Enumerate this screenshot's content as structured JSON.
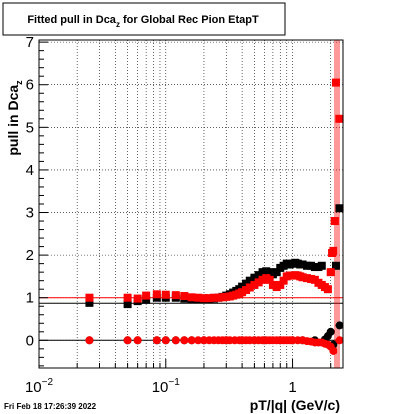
{
  "chart_data": {
    "type": "scatter",
    "title": "Fitted pull in Dca",
    "title_sub": "z",
    "title_rest": " for Global Rec Pion EtapT",
    "ylabel": "pull in Dca",
    "ylabel_sub": "z",
    "xlabel": "pT/|q| (GeV/c)",
    "timestamp": "Fri Feb 18 17:26:39 2022",
    "x_scale": "log",
    "xlim": [
      0.01,
      2.5
    ],
    "ylim": [
      -0.65,
      7.05
    ],
    "grid": true,
    "x_ticks": [
      {
        "value": 0.01,
        "base": "10",
        "exp": "−2"
      },
      {
        "value": 0.1,
        "base": "10",
        "exp": "−1"
      },
      {
        "value": 1,
        "base": "1",
        "exp": ""
      }
    ],
    "y_ticks": [
      "0",
      "1",
      "2",
      "3",
      "4",
      "5",
      "6",
      "7"
    ],
    "reference_lines": [
      {
        "name": "red-sigma-fit",
        "y": 1.0,
        "color": "#ff0000"
      },
      {
        "name": "black-sigma-fit",
        "y": 0.87,
        "color": "#000000"
      },
      {
        "name": "mean-fit",
        "y": 0.0,
        "color": "#000000"
      }
    ],
    "series": [
      {
        "color": "#000000",
        "marker": "square",
        "points": [
          [
            0.025,
            0.88
          ],
          [
            0.05,
            0.85
          ],
          [
            0.06,
            0.92
          ],
          [
            0.07,
            0.95
          ],
          [
            0.085,
            1.0
          ],
          [
            0.1,
            1.0
          ],
          [
            0.12,
            1.0
          ],
          [
            0.14,
            0.98
          ],
          [
            0.16,
            0.97
          ],
          [
            0.18,
            0.97
          ],
          [
            0.2,
            0.96
          ],
          [
            0.22,
            0.97
          ],
          [
            0.24,
            0.98
          ],
          [
            0.26,
            1.0
          ],
          [
            0.28,
            1.02
          ],
          [
            0.3,
            1.05
          ],
          [
            0.32,
            1.08
          ],
          [
            0.34,
            1.12
          ],
          [
            0.36,
            1.16
          ],
          [
            0.38,
            1.2
          ],
          [
            0.4,
            1.26
          ],
          [
            0.43,
            1.33
          ],
          [
            0.46,
            1.4
          ],
          [
            0.5,
            1.47
          ],
          [
            0.54,
            1.53
          ],
          [
            0.58,
            1.6
          ],
          [
            0.62,
            1.62
          ],
          [
            0.66,
            1.6
          ],
          [
            0.7,
            1.55
          ],
          [
            0.75,
            1.6
          ],
          [
            0.8,
            1.7
          ],
          [
            0.85,
            1.75
          ],
          [
            0.9,
            1.8
          ],
          [
            0.95,
            1.78
          ],
          [
            1.0,
            1.8
          ],
          [
            1.05,
            1.82
          ],
          [
            1.1,
            1.8
          ],
          [
            1.15,
            1.78
          ],
          [
            1.2,
            1.78
          ],
          [
            1.3,
            1.75
          ],
          [
            1.4,
            1.75
          ],
          [
            1.5,
            1.72
          ],
          [
            1.6,
            1.72
          ],
          [
            1.7,
            1.75
          ],
          [
            2.2,
            1.75
          ],
          [
            2.35,
            3.1
          ]
        ]
      },
      {
        "color": "#ff0000",
        "marker": "square",
        "points": [
          [
            0.025,
            1.0
          ],
          [
            0.05,
            1.0
          ],
          [
            0.06,
            0.98
          ],
          [
            0.07,
            1.05
          ],
          [
            0.085,
            1.08
          ],
          [
            0.1,
            1.07
          ],
          [
            0.12,
            1.06
          ],
          [
            0.14,
            1.04
          ],
          [
            0.16,
            1.01
          ],
          [
            0.18,
            1.0
          ],
          [
            0.2,
            0.99
          ],
          [
            0.22,
            0.99
          ],
          [
            0.24,
            1.0
          ],
          [
            0.26,
            1.0
          ],
          [
            0.28,
            1.01
          ],
          [
            0.3,
            1.02
          ],
          [
            0.32,
            1.03
          ],
          [
            0.34,
            1.05
          ],
          [
            0.36,
            1.07
          ],
          [
            0.38,
            1.1
          ],
          [
            0.4,
            1.13
          ],
          [
            0.43,
            1.18
          ],
          [
            0.46,
            1.24
          ],
          [
            0.5,
            1.3
          ],
          [
            0.54,
            1.36
          ],
          [
            0.58,
            1.42
          ],
          [
            0.62,
            1.46
          ],
          [
            0.66,
            1.42
          ],
          [
            0.7,
            1.3
          ],
          [
            0.75,
            1.25
          ],
          [
            0.8,
            1.3
          ],
          [
            0.85,
            1.4
          ],
          [
            0.9,
            1.5
          ],
          [
            0.95,
            1.52
          ],
          [
            1.0,
            1.52
          ],
          [
            1.05,
            1.53
          ],
          [
            1.1,
            1.52
          ],
          [
            1.15,
            1.5
          ],
          [
            1.2,
            1.48
          ],
          [
            1.3,
            1.46
          ],
          [
            1.4,
            1.44
          ],
          [
            1.5,
            1.42
          ],
          [
            1.6,
            1.35
          ],
          [
            1.7,
            1.3
          ],
          [
            1.8,
            1.25
          ],
          [
            1.9,
            1.2
          ],
          [
            2.0,
            1.6
          ],
          [
            2.05,
            2.05
          ],
          [
            2.1,
            2.1
          ],
          [
            2.15,
            2.8
          ],
          [
            2.2,
            6.05
          ],
          [
            2.35,
            5.2
          ]
        ]
      },
      {
        "color": "#000000",
        "marker": "circle",
        "points": [
          [
            0.025,
            0.0
          ],
          [
            0.05,
            0.0
          ],
          [
            0.06,
            0.0
          ],
          [
            0.085,
            0.0
          ],
          [
            0.1,
            0.0
          ],
          [
            0.12,
            0.0
          ],
          [
            0.14,
            0.0
          ],
          [
            0.16,
            0.0
          ],
          [
            0.2,
            0.0
          ],
          [
            0.3,
            0.0
          ],
          [
            0.4,
            0.0
          ],
          [
            0.5,
            0.0
          ],
          [
            0.6,
            0.0
          ],
          [
            0.8,
            0.0
          ],
          [
            1.0,
            0.0
          ],
          [
            1.2,
            0.0
          ],
          [
            1.5,
            0.0
          ],
          [
            1.8,
            0.02
          ],
          [
            1.9,
            0.1
          ],
          [
            2.0,
            0.2
          ],
          [
            2.1,
            -0.1
          ],
          [
            2.35,
            0.35
          ]
        ]
      },
      {
        "color": "#ff0000",
        "marker": "circle",
        "points": [
          [
            0.025,
            0.0
          ],
          [
            0.05,
            0.0
          ],
          [
            0.06,
            0.0
          ],
          [
            0.085,
            0.0
          ],
          [
            0.1,
            0.0
          ],
          [
            0.12,
            0.0
          ],
          [
            0.14,
            0.0
          ],
          [
            0.16,
            0.0
          ],
          [
            0.18,
            0.0
          ],
          [
            0.2,
            0.0
          ],
          [
            0.22,
            0.0
          ],
          [
            0.24,
            0.0
          ],
          [
            0.26,
            0.0
          ],
          [
            0.28,
            0.0
          ],
          [
            0.3,
            0.0
          ],
          [
            0.32,
            0.0
          ],
          [
            0.35,
            0.0
          ],
          [
            0.38,
            0.0
          ],
          [
            0.4,
            0.0
          ],
          [
            0.43,
            0.0
          ],
          [
            0.46,
            0.0
          ],
          [
            0.5,
            0.0
          ],
          [
            0.54,
            0.0
          ],
          [
            0.58,
            0.0
          ],
          [
            0.62,
            0.0
          ],
          [
            0.66,
            0.0
          ],
          [
            0.7,
            0.0
          ],
          [
            0.75,
            0.0
          ],
          [
            0.8,
            0.0
          ],
          [
            0.85,
            0.0
          ],
          [
            0.9,
            0.0
          ],
          [
            0.95,
            0.0
          ],
          [
            1.0,
            0.0
          ],
          [
            1.1,
            0.0
          ],
          [
            1.2,
            0.0
          ],
          [
            1.3,
            -0.02
          ],
          [
            1.4,
            -0.03
          ],
          [
            1.5,
            -0.05
          ],
          [
            1.6,
            -0.05
          ],
          [
            1.7,
            -0.05
          ],
          [
            1.8,
            -0.08
          ],
          [
            1.9,
            -0.1
          ],
          [
            2.0,
            -0.15
          ],
          [
            2.1,
            -0.25
          ],
          [
            2.35,
            0.0
          ]
        ]
      }
    ]
  }
}
